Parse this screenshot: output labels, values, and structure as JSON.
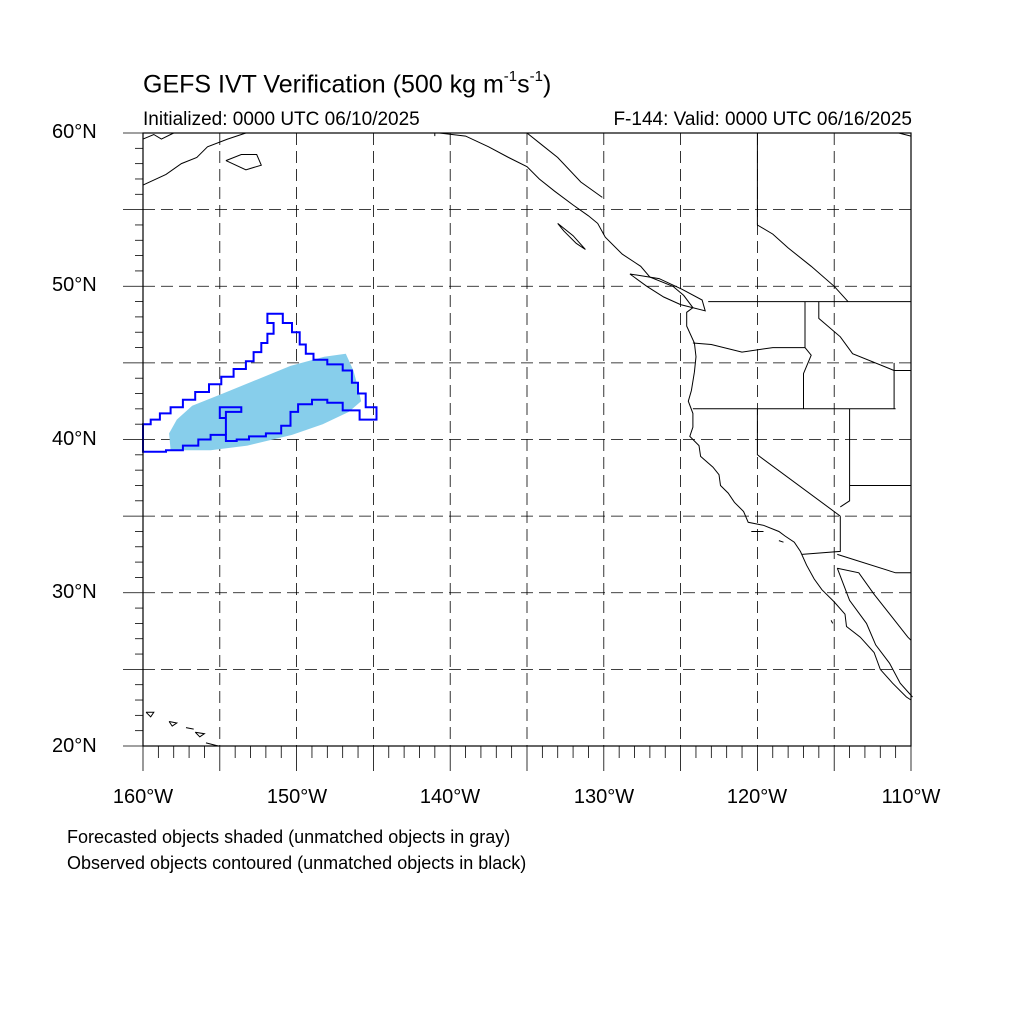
{
  "title": {
    "prefix": "GEFS IVT Verification (500 kg m",
    "exp1": "-1",
    "mid": "s",
    "exp2": "-1",
    "suffix": ")"
  },
  "initialized": "Initialized: 0000 UTC 06/10/2025",
  "valid": "F-144: Valid: 0000 UTC 06/16/2025",
  "map": {
    "lon_range": [
      -160,
      -110
    ],
    "lat_range": [
      20,
      60
    ],
    "gridlines": "dashed",
    "lat_labels": [
      "60°N",
      "50°N",
      "40°N",
      "30°N",
      "20°N"
    ],
    "lon_labels": [
      "160°W",
      "150°W",
      "140°W",
      "130°W",
      "120°W",
      "110°W"
    ],
    "forecast_fill_color": "#87ceeb",
    "observed_contour_color": "#0000ff"
  },
  "notes": [
    "Forecasted objects shaded (unmatched objects in gray)",
    "Observed objects contoured (unmatched objects in black)"
  ]
}
